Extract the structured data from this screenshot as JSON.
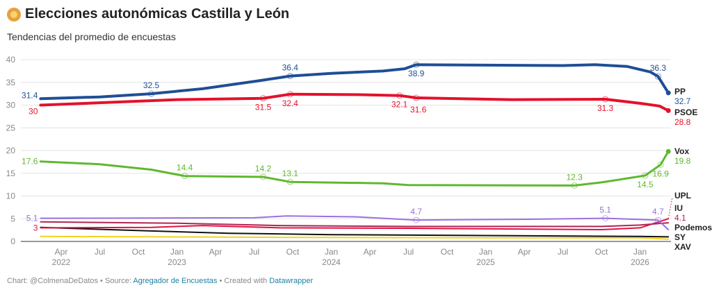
{
  "header": {
    "title": "Elecciones autonómicas Castilla y León",
    "subtitle": "Tendencias del promedio de encuestas"
  },
  "footer": {
    "chart": "Chart: @ColmenaDeDatos",
    "sep1": " • Source: ",
    "source": "Agregador de Encuestas",
    "sep2": " • Created with ",
    "tool": "Datawrapper"
  },
  "chart_data": {
    "type": "line",
    "title": "Elecciones autonómicas Castilla y León",
    "ylim": [
      0,
      40
    ],
    "yticks": [
      0,
      5,
      10,
      15,
      20,
      25,
      30,
      35,
      40
    ],
    "x_unit": "months since Jan 2022",
    "xticks": [
      {
        "m": 3,
        "label": "Apr",
        "year": "2022"
      },
      {
        "m": 6,
        "label": "Jul"
      },
      {
        "m": 9,
        "label": "Oct"
      },
      {
        "m": 12,
        "label": "Jan",
        "year": "2023"
      },
      {
        "m": 15,
        "label": "Apr"
      },
      {
        "m": 18,
        "label": "Jul"
      },
      {
        "m": 21,
        "label": "Oct"
      },
      {
        "m": 24,
        "label": "Jan",
        "year": "2024"
      },
      {
        "m": 27,
        "label": "Apr"
      },
      {
        "m": 30,
        "label": "Jul"
      },
      {
        "m": 33,
        "label": "Oct"
      },
      {
        "m": 36,
        "label": "Jan",
        "year": "2025"
      },
      {
        "m": 39,
        "label": "Apr"
      },
      {
        "m": 42,
        "label": "Jul"
      },
      {
        "m": 45,
        "label": "Oct"
      },
      {
        "m": 48,
        "label": "Jan",
        "year": "2026"
      }
    ],
    "series": [
      {
        "name": "PP",
        "color": "#1f4e96",
        "width": 4,
        "points": [
          [
            1.4,
            31.4
          ],
          [
            6,
            31.8
          ],
          [
            10,
            32.5
          ],
          [
            14,
            33.6
          ],
          [
            18,
            35.2
          ],
          [
            20.8,
            36.4
          ],
          [
            24,
            37
          ],
          [
            28,
            37.5
          ],
          [
            29.7,
            38
          ],
          [
            30.6,
            38.9
          ],
          [
            36,
            38.8
          ],
          [
            42,
            38.7
          ],
          [
            44.5,
            38.9
          ],
          [
            47,
            38.5
          ],
          [
            48.8,
            37.3
          ],
          [
            49.4,
            36.3
          ],
          [
            50.2,
            32.7
          ]
        ],
        "labels": [
          [
            1.4,
            31.4,
            "l"
          ],
          [
            10,
            32.5,
            "a"
          ],
          [
            20.8,
            36.4,
            "a"
          ],
          [
            30.6,
            38.9,
            "b"
          ],
          [
            49.4,
            36.3,
            "a"
          ],
          [
            50.2,
            32.7,
            "e"
          ]
        ],
        "end_value": "32.7"
      },
      {
        "name": "PSOE",
        "color": "#e3112c",
        "width": 4,
        "points": [
          [
            1.4,
            30
          ],
          [
            12,
            31.2
          ],
          [
            18.7,
            31.5
          ],
          [
            20.8,
            32.4
          ],
          [
            26,
            32.3
          ],
          [
            29.3,
            32.1
          ],
          [
            30.6,
            31.6
          ],
          [
            38,
            31.2
          ],
          [
            45.3,
            31.3
          ],
          [
            48,
            30.4
          ],
          [
            49.5,
            29.8
          ],
          [
            50.2,
            28.8
          ]
        ],
        "labels": [
          [
            1.4,
            30,
            "l"
          ],
          [
            18.7,
            31.5,
            "b"
          ],
          [
            20.8,
            32.4,
            "b"
          ],
          [
            29.3,
            32.1,
            "b"
          ],
          [
            30.6,
            31.6,
            "b2"
          ],
          [
            45.3,
            31.3,
            "b"
          ],
          [
            50.2,
            28.8,
            "e"
          ]
        ],
        "end_value": "28.8"
      },
      {
        "name": "Vox",
        "color": "#5fb82e",
        "width": 3,
        "points": [
          [
            1.4,
            17.6
          ],
          [
            6,
            17
          ],
          [
            10,
            15.8
          ],
          [
            12.6,
            14.4
          ],
          [
            18.7,
            14.2
          ],
          [
            20.8,
            13.1
          ],
          [
            28,
            12.8
          ],
          [
            30,
            12.4
          ],
          [
            42.9,
            12.3
          ],
          [
            45,
            13
          ],
          [
            48.4,
            14.5
          ],
          [
            49.6,
            16.9
          ],
          [
            50.2,
            19.8
          ]
        ],
        "labels": [
          [
            1.4,
            17.6,
            "l"
          ],
          [
            12.6,
            14.4,
            "a"
          ],
          [
            18.7,
            14.2,
            "a"
          ],
          [
            20.8,
            13.1,
            "a"
          ],
          [
            42.9,
            12.3,
            "a"
          ],
          [
            48.4,
            14.5,
            "b"
          ],
          [
            49.6,
            16.9,
            "b"
          ],
          [
            50.2,
            19.8,
            "e"
          ]
        ],
        "end_value": "19.8"
      },
      {
        "name": "Podemos",
        "color": "#9b6fe0",
        "width": 2,
        "points": [
          [
            1.4,
            5.1
          ],
          [
            18,
            5.2
          ],
          [
            20.5,
            5.6
          ],
          [
            26,
            5.4
          ],
          [
            30.6,
            4.7
          ],
          [
            40,
            4.9
          ],
          [
            45.3,
            5.1
          ],
          [
            49.4,
            4.7
          ],
          [
            50.2,
            2.6
          ]
        ],
        "labels": [
          [
            1.4,
            5.1,
            "l"
          ],
          [
            30.6,
            4.7,
            "a"
          ],
          [
            45.3,
            5.1,
            "a"
          ],
          [
            49.4,
            4.7,
            "a"
          ]
        ],
        "end_value": ""
      },
      {
        "name": "IU",
        "color": "#b02455",
        "width": 2,
        "points": [
          [
            1.4,
            4.3
          ],
          [
            12,
            4
          ],
          [
            20,
            3.5
          ],
          [
            30,
            3.3
          ],
          [
            45,
            3.3
          ],
          [
            48,
            3.6
          ],
          [
            50.2,
            4.1
          ]
        ],
        "labels": [],
        "end_value": "4.1"
      },
      {
        "name": "UPL",
        "color": "#e3113f",
        "width": 2,
        "points": [
          [
            1.4,
            3
          ],
          [
            10,
            3.1
          ],
          [
            14,
            3.5
          ],
          [
            20,
            3
          ],
          [
            30,
            2.9
          ],
          [
            45,
            2.6
          ],
          [
            48,
            3
          ],
          [
            50.2,
            5
          ]
        ],
        "labels": [
          [
            1.4,
            3,
            "l"
          ]
        ],
        "end_value": ""
      },
      {
        "name": "SY",
        "color": "#111111",
        "width": 2,
        "points": [
          [
            1.4,
            3.1
          ],
          [
            10,
            2.3
          ],
          [
            16,
            1.8
          ],
          [
            24,
            1.5
          ],
          [
            36,
            1.3
          ],
          [
            48,
            1.1
          ],
          [
            50.2,
            1
          ]
        ],
        "labels": [],
        "end_value": ""
      },
      {
        "name": "XAV",
        "color": "#f2d21b",
        "width": 2,
        "points": [
          [
            1.4,
            1.1
          ],
          [
            20,
            0.9
          ],
          [
            36,
            0.8
          ],
          [
            48,
            0.8
          ],
          [
            50.2,
            0.5
          ]
        ],
        "labels": [],
        "end_value": ""
      }
    ]
  }
}
